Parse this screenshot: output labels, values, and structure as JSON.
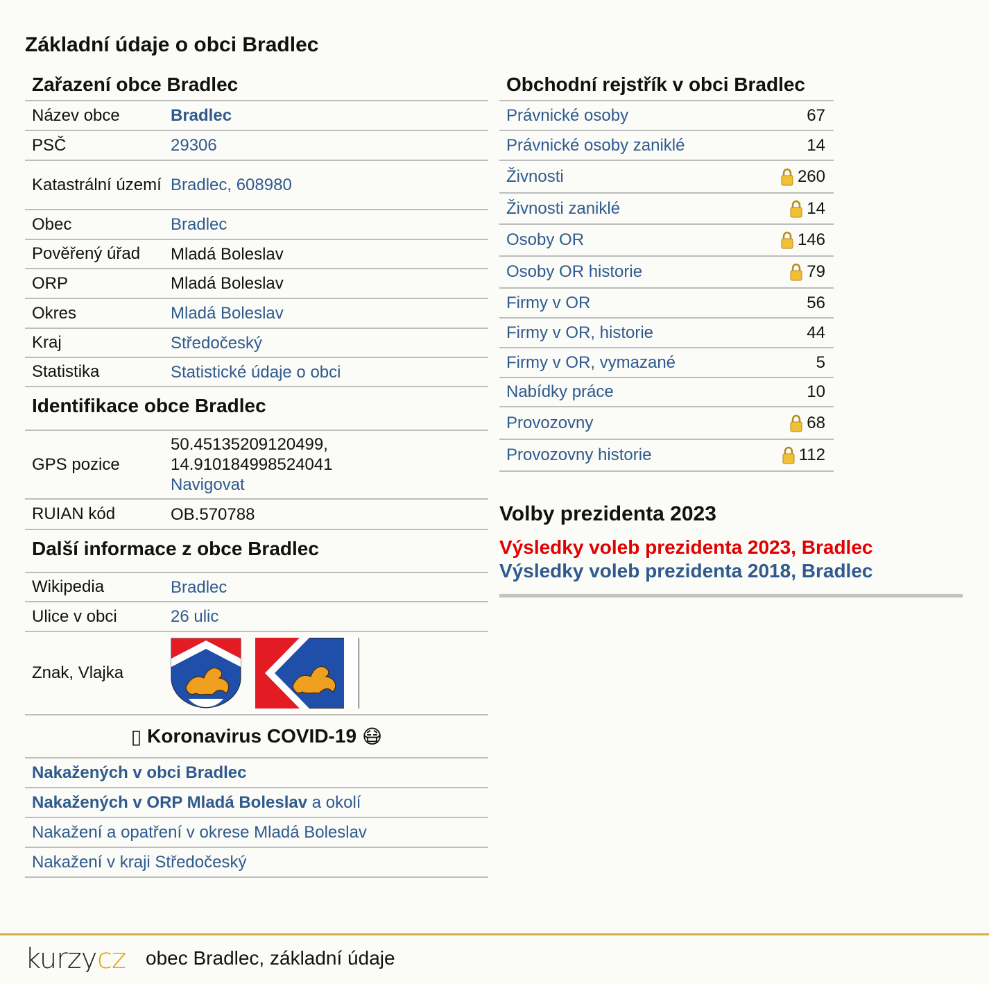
{
  "title": "Základní údaje o obci Bradlec",
  "zarazeni": {
    "heading": "Zařazení obce Bradlec",
    "rows": [
      {
        "label": "Název obce",
        "value": "Bradlec"
      },
      {
        "label": "PSČ",
        "value": "29306"
      },
      {
        "label": "Katastrální území",
        "value": "Bradlec, 608980"
      },
      {
        "label": "Obec",
        "value": "Bradlec"
      },
      {
        "label": "Pověřený úřad",
        "value": "Mladá Boleslav"
      },
      {
        "label": "ORP",
        "value": "Mladá Boleslav"
      },
      {
        "label": "Okres",
        "value": "Mladá Boleslav"
      },
      {
        "label": "Kraj",
        "value": "Středočeský"
      },
      {
        "label": "Statistika",
        "value": "Statistické údaje o obci"
      }
    ]
  },
  "identifikace": {
    "heading": "Identifikace obce Bradlec",
    "gps_label": "GPS pozice",
    "gps_lat": "50.45135209120499,",
    "gps_lon": "14.910184998524041",
    "gps_nav": "Navigovat",
    "ruian_label": "RUIAN kód",
    "ruian_value": "OB.570788"
  },
  "dalsi": {
    "heading": "Další informace z obce Bradlec",
    "wikipedia_label": "Wikipedia",
    "wikipedia_value": "Bradlec",
    "ulice_label": "Ulice v obci",
    "ulice_value": "26 ulic",
    "znak_label": "Znak, Vlajka"
  },
  "covid": {
    "icon_left": "▯",
    "heading": "Koronavirus COVID-19",
    "icon_right": "😷",
    "row1": "Nakažených v obci Bradlec",
    "row2_bold": "Nakažených v ORP Mladá Boleslav",
    "row2_rest": " a okolí",
    "row3": "Nakažení a opatření v okrese Mladá Boleslav",
    "row4": "Nakažení v kraji Středočeský"
  },
  "rejstrik": {
    "heading": "Obchodní rejstřík v obci Bradlec",
    "rows": [
      {
        "label": "Právnické osoby",
        "count": "67",
        "locked": false
      },
      {
        "label": "Právnické osoby zaniklé",
        "count": "14",
        "locked": false
      },
      {
        "label": "Živnosti",
        "count": "260",
        "locked": true
      },
      {
        "label": "Živnosti zaniklé",
        "count": "14",
        "locked": true
      },
      {
        "label": "Osoby OR",
        "count": "146",
        "locked": true
      },
      {
        "label": "Osoby OR historie",
        "count": "79",
        "locked": true
      },
      {
        "label": "Firmy v OR",
        "count": "56",
        "locked": false
      },
      {
        "label": "Firmy v OR, historie",
        "count": "44",
        "locked": false
      },
      {
        "label": "Firmy v OR, vymazané",
        "count": "5",
        "locked": false
      },
      {
        "label": "Nabídky práce",
        "count": "10",
        "locked": false
      },
      {
        "label": "Provozovny",
        "count": "68",
        "locked": true
      },
      {
        "label": "Provozovny historie",
        "count": "112",
        "locked": true
      }
    ]
  },
  "volby": {
    "heading": "Volby prezidenta 2023",
    "link_2023": "Výsledky voleb prezidenta 2023, Bradlec",
    "link_2018": "Výsledky voleb prezidenta 2018, Bradlec"
  },
  "footer": {
    "logo": "kurzycz",
    "text": "obec Bradlec, základní údaje"
  },
  "colors": {
    "link": "#2f5a8e",
    "red_link": "#e00000",
    "rule": "#bdbdbd",
    "footer_rule": "#d8ac45",
    "background": "#fbfbf8"
  }
}
